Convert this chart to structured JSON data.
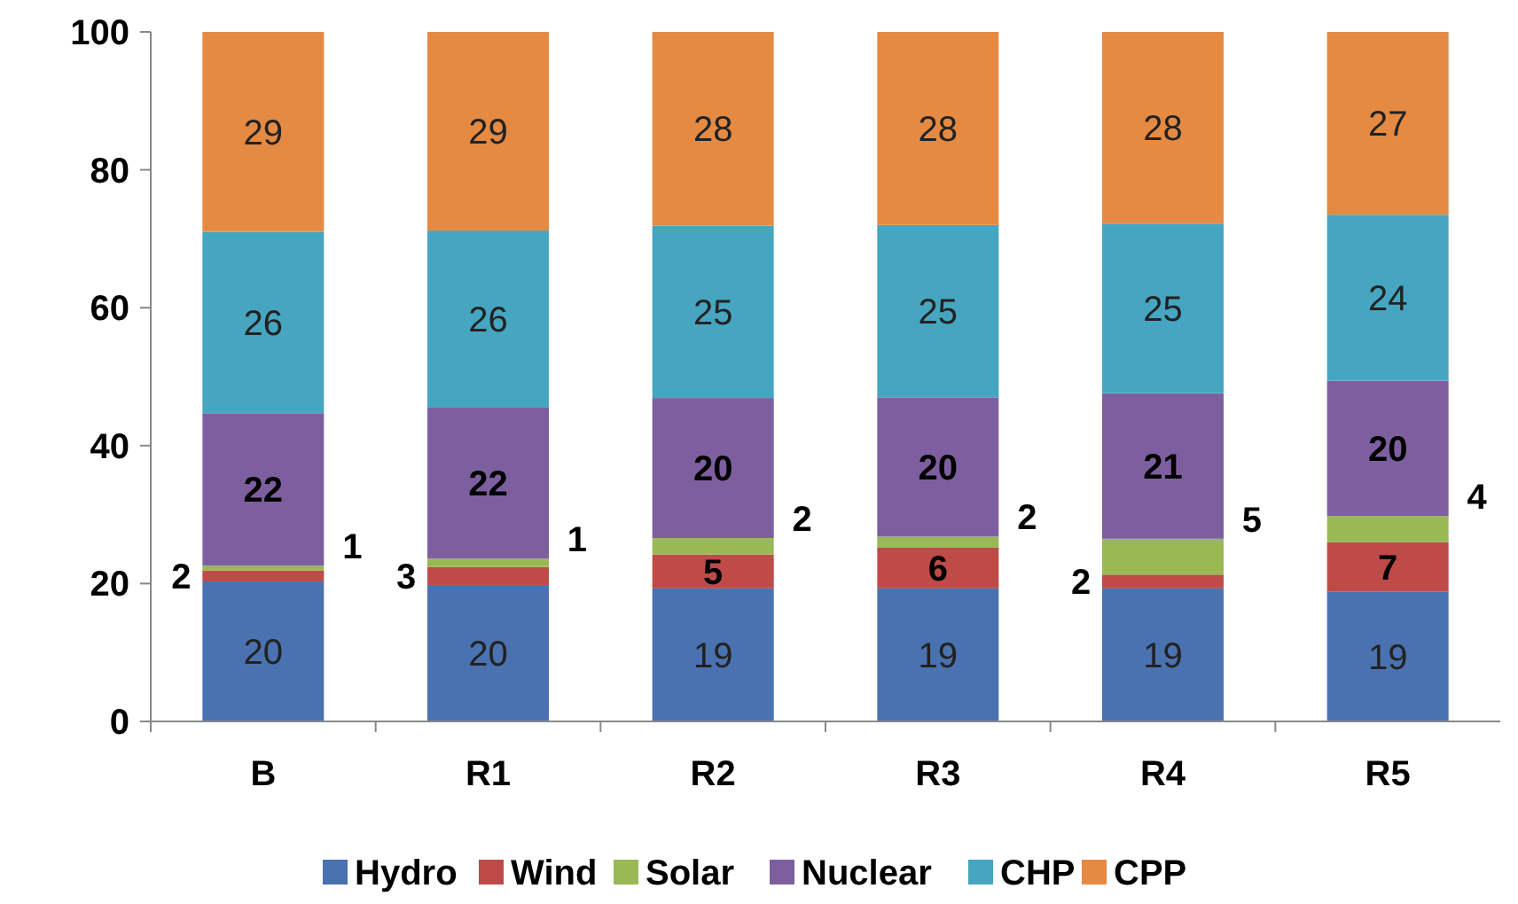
{
  "chart_data": {
    "type": "bar",
    "stacked": true,
    "categories": [
      "B",
      "R1",
      "R2",
      "R3",
      "R4",
      "R5"
    ],
    "ylim": [
      0,
      100
    ],
    "yticks": [
      0,
      20,
      40,
      60,
      80,
      100
    ],
    "grid": false,
    "legend": "bottom",
    "series": [
      {
        "name": "Hydro",
        "color": "#4a72b0",
        "values": [
          20.3,
          19.8,
          19.3,
          19.3,
          19.3,
          18.8
        ],
        "value_labels": [
          "20",
          "20",
          "19",
          "19",
          "19",
          "19"
        ]
      },
      {
        "name": "Wind",
        "color": "#be4b48",
        "values": [
          1.6,
          2.6,
          4.9,
          5.9,
          2.0,
          7.2
        ],
        "value_labels": [
          "2",
          "3",
          "5",
          "6",
          "2",
          "7"
        ]
      },
      {
        "name": "Solar",
        "color": "#98b954",
        "values": [
          0.7,
          1.2,
          2.4,
          1.6,
          5.2,
          3.8
        ],
        "value_labels": [
          "1",
          "1",
          "2",
          "2",
          "5",
          "4"
        ]
      },
      {
        "name": "Nuclear",
        "color": "#7d5fa0",
        "values": [
          22.1,
          21.9,
          20.3,
          20.2,
          21.1,
          19.6
        ],
        "value_labels": [
          "22",
          "22",
          "20",
          "20",
          "21",
          "20"
        ]
      },
      {
        "name": "CHP",
        "color": "#46a5c0",
        "values": [
          26.3,
          25.7,
          25.0,
          25.0,
          24.6,
          24.1
        ],
        "value_labels": [
          "26",
          "26",
          "25",
          "25",
          "25",
          "24"
        ]
      },
      {
        "name": "CPP",
        "color": "#e58a43",
        "values": [
          29.0,
          28.8,
          28.1,
          28.0,
          27.8,
          26.5
        ],
        "value_labels": [
          "29",
          "29",
          "28",
          "28",
          "28",
          "27"
        ]
      }
    ]
  }
}
